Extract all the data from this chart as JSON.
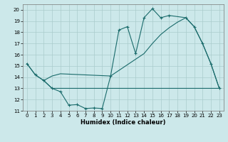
{
  "xlabel": "Humidex (Indice chaleur)",
  "bg_color": "#cce8ea",
  "grid_color": "#aacccc",
  "line_color": "#1a6b6b",
  "xlim": [
    -0.5,
    23.5
  ],
  "ylim": [
    11,
    20.5
  ],
  "yticks": [
    11,
    12,
    13,
    14,
    15,
    16,
    17,
    18,
    19,
    20
  ],
  "xticks": [
    0,
    1,
    2,
    3,
    4,
    5,
    6,
    7,
    8,
    9,
    10,
    11,
    12,
    13,
    14,
    15,
    16,
    17,
    18,
    19,
    20,
    21,
    22,
    23
  ],
  "line1_x": [
    0,
    1,
    2,
    3,
    4,
    5,
    6,
    7,
    8,
    9,
    10,
    11,
    12,
    13,
    14,
    15,
    16,
    17,
    19,
    20,
    21,
    22,
    23
  ],
  "line1_y": [
    15.2,
    14.2,
    13.7,
    13.0,
    12.7,
    11.5,
    11.55,
    11.2,
    11.25,
    11.2,
    14.1,
    18.2,
    18.5,
    16.1,
    19.3,
    20.1,
    19.3,
    19.5,
    19.3,
    18.5,
    17.0,
    15.2,
    13.0
  ],
  "line2_x": [
    2,
    3,
    4,
    5,
    6,
    7,
    8,
    9,
    10,
    11,
    12,
    13,
    14,
    18,
    19,
    23
  ],
  "line2_y": [
    13.7,
    13.0,
    13.0,
    13.0,
    13.0,
    13.0,
    13.0,
    13.0,
    13.0,
    13.0,
    13.0,
    13.0,
    13.0,
    13.0,
    13.0,
    13.0
  ],
  "line3_x": [
    0,
    1,
    2,
    3,
    4,
    10,
    11,
    12,
    13,
    14,
    15,
    16,
    17,
    18,
    19,
    20,
    21,
    22,
    23
  ],
  "line3_y": [
    15.2,
    14.2,
    13.7,
    14.1,
    14.3,
    14.1,
    14.6,
    15.1,
    15.6,
    16.1,
    17.0,
    17.8,
    18.4,
    18.9,
    19.3,
    18.5,
    17.0,
    15.2,
    13.0
  ]
}
